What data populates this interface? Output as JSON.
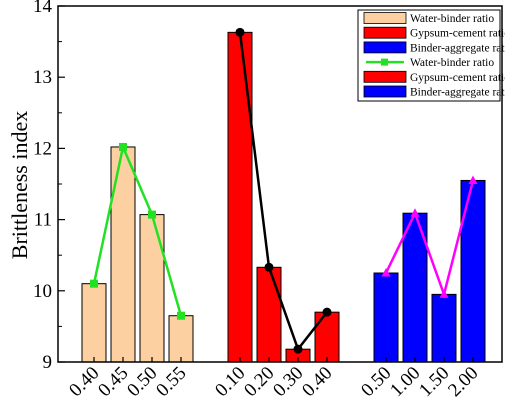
{
  "chart_data": {
    "type": "bar",
    "ylabel": "Brittleness index",
    "ylim": [
      9,
      14
    ],
    "yticks": [
      9,
      10,
      11,
      12,
      13,
      14
    ],
    "yminor_step": 0.5,
    "grid": false,
    "legend_position": "top-right",
    "groups": [
      {
        "series_bar": "Water-binder ratio",
        "series_line": "Water-binder ratio",
        "categories": [
          "0.40",
          "0.45",
          "0.50",
          "0.55"
        ],
        "values": [
          10.1,
          12.02,
          11.07,
          9.65
        ],
        "bar_color": "#fcd0a0",
        "line_color": "#22e022",
        "marker": "square"
      },
      {
        "series_bar": "Gypsum-cement ratio",
        "series_line": "Gypsum-cement ratio",
        "categories": [
          "0.10",
          "0.20",
          "0.30",
          "0.40"
        ],
        "values": [
          13.63,
          10.33,
          9.18,
          9.7
        ],
        "bar_color": "#ff0000",
        "line_color": "#000000",
        "marker": "circle"
      },
      {
        "series_bar": "Binder-aggregate ratio",
        "series_line": "Binder-aggregate ratio",
        "categories": [
          "0.50",
          "1.00",
          "1.50",
          "2.00"
        ],
        "values": [
          10.25,
          11.09,
          9.95,
          11.55
        ],
        "bar_color": "#0000ff",
        "line_color": "#ff00ff",
        "marker": "triangle"
      }
    ],
    "legend": [
      {
        "label": "Water-binder ratio",
        "kind": "bar",
        "color": "#fcd0a0"
      },
      {
        "label": "Gypsum-cement ratio",
        "kind": "bar",
        "color": "#ff0000"
      },
      {
        "label": "Binder-aggregate ratio",
        "kind": "bar",
        "color": "#0000ff"
      },
      {
        "label": "Water-binder ratio",
        "kind": "bar-line",
        "color": "#22e022"
      },
      {
        "label": "Gypsum-cement ratio",
        "kind": "bar",
        "color": "#ff0000"
      },
      {
        "label": "Binder-aggregate ratio",
        "kind": "bar",
        "color": "#0000ff"
      }
    ]
  }
}
